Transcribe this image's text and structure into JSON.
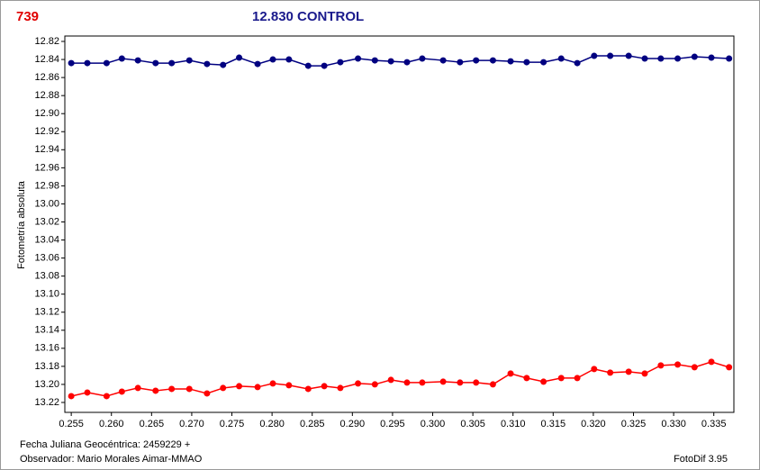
{
  "chart_data": {
    "type": "scatter",
    "label": "739",
    "title": "12.830 CONTROL",
    "y_label": "Fotometría absoluta",
    "x_label": "Fecha Juliana Geocéntrica: 2459229 +",
    "observer": "Observador: Mario Morales Aimar-MMAO",
    "software": "FotoDif 3.95",
    "y_inverted": true,
    "grid": false,
    "xlim": [
      0.2542,
      0.3375
    ],
    "ylim": [
      12.814,
      13.231
    ],
    "xticks": [
      0.255,
      {
        "value": 0.26,
        "label": "0.260"
      },
      0.265,
      {
        "value": 0.27,
        "label": "0.270"
      },
      0.275,
      {
        "value": 0.28,
        "label": "0.280"
      },
      0.285,
      {
        "value": 0.29,
        "label": "0.290"
      },
      0.295,
      {
        "value": 0.3,
        "label": "0.300"
      },
      0.305,
      {
        "value": 0.31,
        "label": "0.310"
      },
      0.315,
      {
        "value": 0.32,
        "label": "0.320"
      },
      0.325,
      {
        "value": 0.33,
        "label": "0.330"
      },
      0.335
    ],
    "yticks": [
      12.82,
      12.84,
      12.86,
      12.88,
      {
        "value": 12.9,
        "label": "12.90"
      },
      12.92,
      12.94,
      12.96,
      12.98,
      {
        "value": 13.0,
        "label": "13.00"
      },
      13.02,
      13.04,
      13.06,
      13.08,
      {
        "value": 13.1,
        "label": "13.10"
      },
      13.12,
      13.14,
      13.16,
      13.18,
      {
        "value": 13.2,
        "label": "13.20"
      },
      13.22
    ],
    "x": [
      0.255,
      0.257,
      0.2594,
      0.2613,
      0.2633,
      0.2655,
      0.2675,
      0.2697,
      0.2719,
      0.2739,
      0.2759,
      0.2782,
      0.2801,
      0.2821,
      0.2845,
      0.2865,
      0.2885,
      0.2907,
      0.2928,
      0.2948,
      0.2968,
      0.2987,
      0.3013,
      0.3034,
      0.3054,
      0.3075,
      0.3097,
      0.3117,
      0.3138,
      0.316,
      0.318,
      0.3201,
      0.3221,
      0.3244,
      0.3264,
      0.3284,
      0.3305,
      0.3326,
      0.3347,
      0.3369
    ],
    "series": [
      {
        "color": "#000080",
        "values": [
          12.844,
          12.844,
          12.844,
          12.839,
          12.841,
          12.844,
          12.844,
          12.841,
          12.845,
          12.846,
          12.838,
          12.845,
          12.84,
          12.84,
          12.847,
          12.847,
          12.843,
          12.839,
          12.841,
          12.842,
          12.843,
          12.839,
          12.841,
          12.843,
          12.841,
          12.841,
          12.842,
          12.843,
          12.843,
          12.839,
          12.844,
          12.836,
          12.836,
          12.836,
          12.839,
          12.839,
          12.839,
          12.837,
          12.838,
          12.839
        ]
      },
      {
        "color": "#ff0000",
        "values": [
          13.213,
          13.209,
          13.213,
          13.208,
          13.204,
          13.207,
          13.205,
          13.205,
          13.21,
          13.204,
          13.202,
          13.203,
          13.199,
          13.201,
          13.205,
          13.202,
          13.204,
          13.199,
          13.2,
          13.195,
          13.198,
          13.198,
          13.197,
          13.198,
          13.198,
          13.2,
          13.188,
          13.193,
          13.197,
          13.193,
          13.193,
          13.183,
          13.187,
          13.186,
          13.188,
          13.179,
          13.178,
          13.181,
          13.175,
          13.181
        ]
      }
    ]
  }
}
